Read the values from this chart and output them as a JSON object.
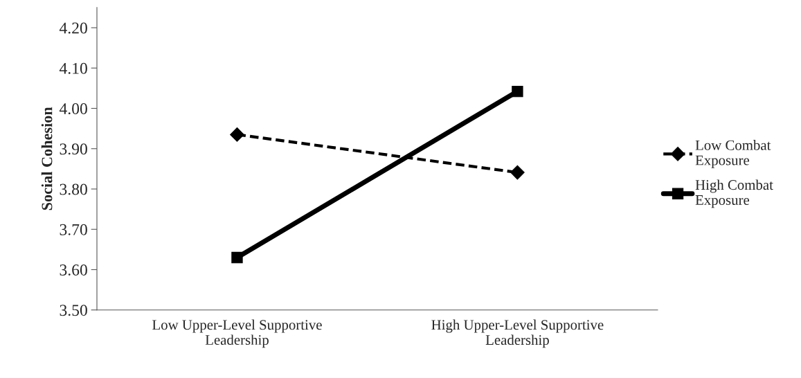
{
  "chart_data": {
    "type": "line",
    "ylabel": "Social Cohesion",
    "categories": [
      "Low Upper-Level Supportive\nLeadership",
      "High Upper-Level Supportive\nLeadership"
    ],
    "series": [
      {
        "name": "Low Combat\nExposure",
        "color": "#000000",
        "values": [
          3.935,
          3.841
        ],
        "marker": "diamond",
        "line_style": "dashed"
      },
      {
        "name": "High Combat\nExposure",
        "color": "#000000",
        "values": [
          3.63,
          4.042
        ],
        "marker": "square",
        "line_style": "solid"
      }
    ],
    "ylim": [
      3.5,
      4.25
    ],
    "yticks": [
      {
        "value": 3.5,
        "label": "3.50"
      },
      {
        "value": 3.6,
        "label": "3.60"
      },
      {
        "value": 3.7,
        "label": "3.70"
      },
      {
        "value": 3.8,
        "label": "3.80"
      },
      {
        "value": 3.9,
        "label": "3.90"
      },
      {
        "value": 4.0,
        "label": "4.00"
      },
      {
        "value": 4.1,
        "label": "4.10"
      },
      {
        "value": 4.2,
        "label": "4.20"
      }
    ],
    "grid": false,
    "legend": "right"
  }
}
